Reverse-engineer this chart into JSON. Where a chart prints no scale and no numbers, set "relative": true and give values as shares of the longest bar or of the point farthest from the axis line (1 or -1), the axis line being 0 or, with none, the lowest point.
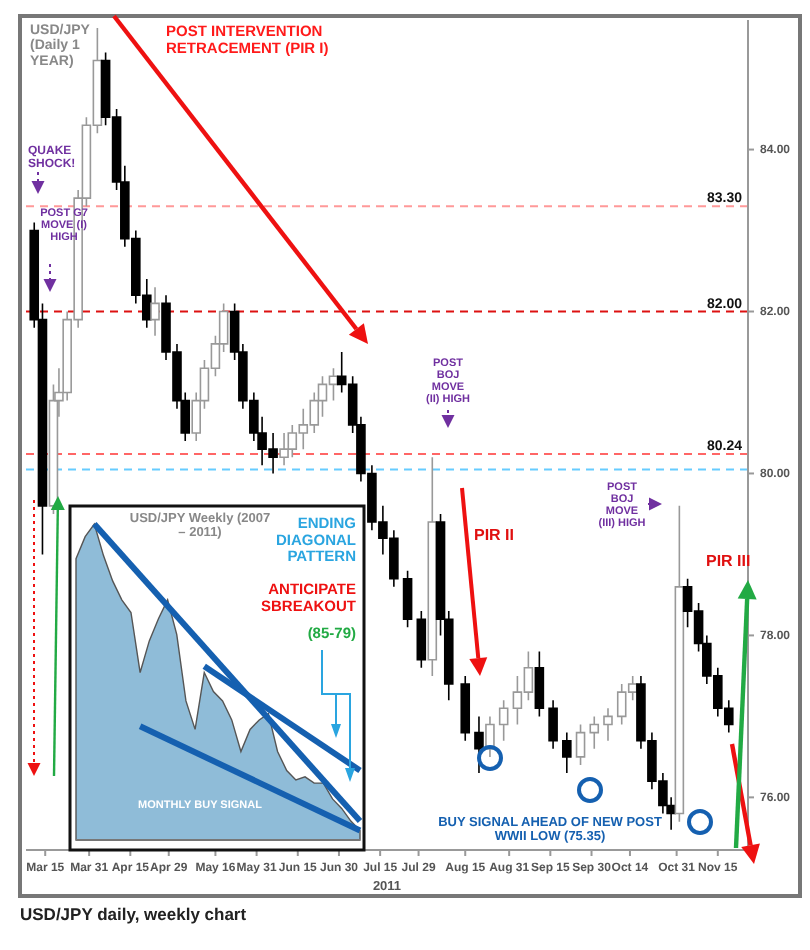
{
  "chart_data": [
    {
      "type": "candlestick",
      "title": "USD/JPY (Daily 1 YEAR)",
      "xlabel": "2011",
      "x": [
        "2011-03-11",
        "2011-03-14",
        "2011-03-18",
        "2011-03-20",
        "2011-03-23",
        "2011-03-27",
        "2011-03-30",
        "2011-04-03",
        "2011-04-06",
        "2011-04-10",
        "2011-04-13",
        "2011-04-17",
        "2011-04-21",
        "2011-04-24",
        "2011-04-28",
        "2011-05-02",
        "2011-05-05",
        "2011-05-09",
        "2011-05-12",
        "2011-05-16",
        "2011-05-19",
        "2011-05-23",
        "2011-05-26",
        "2011-05-30",
        "2011-06-02",
        "2011-06-06",
        "2011-06-10",
        "2011-06-13",
        "2011-06-17",
        "2011-06-21",
        "2011-06-24",
        "2011-06-28",
        "2011-07-01",
        "2011-07-05",
        "2011-07-08",
        "2011-07-12",
        "2011-07-16",
        "2011-07-20",
        "2011-07-25",
        "2011-07-30",
        "2011-08-03",
        "2011-08-06",
        "2011-08-09",
        "2011-08-15",
        "2011-08-20",
        "2011-08-24",
        "2011-08-29",
        "2011-09-03",
        "2011-09-07",
        "2011-09-11",
        "2011-09-16",
        "2011-09-21",
        "2011-09-26",
        "2011-10-01",
        "2011-10-06",
        "2011-10-11",
        "2011-10-15",
        "2011-10-18",
        "2011-10-22",
        "2011-10-26",
        "2011-10-29",
        "2011-11-01",
        "2011-11-04",
        "2011-11-08",
        "2011-11-11",
        "2011-11-15",
        "2011-11-19"
      ],
      "ohlc": [
        [
          83.0,
          83.1,
          81.8,
          81.9
        ],
        [
          81.9,
          82.1,
          79.0,
          79.6
        ],
        [
          79.6,
          81.1,
          79.5,
          80.9
        ],
        [
          80.9,
          81.3,
          80.7,
          81.0
        ],
        [
          81.0,
          82.0,
          80.9,
          81.9
        ],
        [
          81.9,
          83.5,
          81.8,
          83.4
        ],
        [
          83.4,
          84.4,
          83.3,
          84.3
        ],
        [
          84.3,
          85.5,
          84.2,
          85.1
        ],
        [
          85.1,
          85.2,
          84.3,
          84.4
        ],
        [
          84.4,
          84.5,
          83.5,
          83.6
        ],
        [
          83.6,
          83.8,
          82.8,
          82.9
        ],
        [
          82.9,
          83.0,
          82.1,
          82.2
        ],
        [
          82.2,
          82.4,
          81.8,
          81.9
        ],
        [
          81.9,
          82.3,
          81.7,
          82.1
        ],
        [
          82.1,
          82.2,
          81.4,
          81.5
        ],
        [
          81.5,
          81.6,
          80.8,
          80.9
        ],
        [
          80.9,
          81.0,
          80.4,
          80.5
        ],
        [
          80.5,
          81.0,
          80.4,
          80.9
        ],
        [
          80.9,
          81.4,
          80.8,
          81.3
        ],
        [
          81.3,
          81.7,
          81.2,
          81.6
        ],
        [
          81.6,
          82.1,
          81.5,
          82.0
        ],
        [
          82.0,
          82.1,
          81.4,
          81.5
        ],
        [
          81.5,
          81.6,
          80.8,
          80.9
        ],
        [
          80.9,
          81.0,
          80.4,
          80.5
        ],
        [
          80.5,
          80.7,
          80.1,
          80.3
        ],
        [
          80.3,
          80.5,
          80.0,
          80.2
        ],
        [
          80.2,
          80.5,
          80.1,
          80.3
        ],
        [
          80.3,
          80.6,
          80.2,
          80.5
        ],
        [
          80.5,
          80.8,
          80.3,
          80.6
        ],
        [
          80.6,
          81.0,
          80.5,
          80.9
        ],
        [
          80.9,
          81.2,
          80.7,
          81.1
        ],
        [
          81.1,
          81.3,
          80.9,
          81.2
        ],
        [
          81.2,
          81.5,
          81.0,
          81.1
        ],
        [
          81.1,
          81.2,
          80.5,
          80.6
        ],
        [
          80.6,
          80.7,
          79.9,
          80.0
        ],
        [
          80.0,
          80.1,
          79.3,
          79.4
        ],
        [
          79.4,
          79.6,
          79.0,
          79.2
        ],
        [
          79.2,
          79.3,
          78.6,
          78.7
        ],
        [
          78.7,
          78.8,
          78.1,
          78.2
        ],
        [
          78.2,
          78.3,
          77.6,
          77.7
        ],
        [
          77.7,
          80.2,
          77.5,
          79.4
        ],
        [
          79.4,
          79.5,
          78.0,
          78.2
        ],
        [
          78.2,
          78.3,
          77.2,
          77.4
        ],
        [
          77.4,
          77.5,
          76.7,
          76.8
        ],
        [
          76.8,
          77.0,
          76.3,
          76.6
        ],
        [
          76.6,
          77.0,
          76.5,
          76.9
        ],
        [
          76.9,
          77.2,
          76.7,
          77.1
        ],
        [
          77.1,
          77.5,
          76.9,
          77.3
        ],
        [
          77.3,
          77.8,
          77.2,
          77.6
        ],
        [
          77.6,
          77.8,
          77.0,
          77.1
        ],
        [
          77.1,
          77.2,
          76.6,
          76.7
        ],
        [
          76.7,
          76.8,
          76.3,
          76.5
        ],
        [
          76.5,
          76.9,
          76.4,
          76.8
        ],
        [
          76.8,
          77.0,
          76.6,
          76.9
        ],
        [
          76.9,
          77.1,
          76.7,
          77.0
        ],
        [
          77.0,
          77.4,
          76.9,
          77.3
        ],
        [
          77.3,
          77.5,
          77.2,
          77.4
        ],
        [
          77.4,
          77.5,
          76.6,
          76.7
        ],
        [
          76.7,
          76.8,
          76.1,
          76.2
        ],
        [
          76.2,
          76.3,
          75.8,
          75.9
        ],
        [
          75.9,
          76.0,
          75.6,
          75.8
        ],
        [
          75.8,
          79.6,
          75.7,
          78.6
        ],
        [
          78.6,
          78.7,
          78.1,
          78.3
        ],
        [
          78.3,
          78.4,
          77.8,
          77.9
        ],
        [
          77.9,
          78.0,
          77.4,
          77.5
        ],
        [
          77.5,
          77.6,
          77.0,
          77.1
        ],
        [
          77.1,
          77.2,
          76.8,
          76.9
        ]
      ],
      "xlim": [
        "2011-03-08",
        "2011-11-26"
      ],
      "xticks": [
        {
          "value": "2011-03-15",
          "label": "Mar 15"
        },
        {
          "value": "2011-03-31",
          "label": "Mar 31"
        },
        {
          "value": "2011-04-15",
          "label": "Apr 15"
        },
        {
          "value": "2011-04-29",
          "label": "Apr 29"
        },
        {
          "value": "2011-05-16",
          "label": "May 16"
        },
        {
          "value": "2011-05-31",
          "label": "May 31"
        },
        {
          "value": "2011-06-15",
          "label": "Jun 15"
        },
        {
          "value": "2011-06-30",
          "label": "Jun 30"
        },
        {
          "value": "2011-07-15",
          "label": "Jul 15"
        },
        {
          "value": "2011-07-29",
          "label": "Jul 29"
        },
        {
          "value": "2011-08-15",
          "label": "Aug 15"
        },
        {
          "value": "2011-08-31",
          "label": "Aug 31"
        },
        {
          "value": "2011-09-15",
          "label": "Sep 15"
        },
        {
          "value": "2011-09-30",
          "label": "Sep 30"
        },
        {
          "value": "2011-10-14",
          "label": "Oct 14"
        },
        {
          "value": "2011-10-31",
          "label": "Oct 31"
        },
        {
          "value": "2011-11-15",
          "label": "Nov 15"
        }
      ],
      "ylim": [
        75.35,
        85.6
      ],
      "yticks": [
        {
          "value": 76,
          "label": "76.00"
        },
        {
          "value": 78,
          "label": "78.00"
        },
        {
          "value": 80,
          "label": "80.00"
        },
        {
          "value": 82,
          "label": "82.00"
        },
        {
          "value": 84,
          "label": "84.00"
        }
      ],
      "ref_lines": [
        {
          "axis": "y",
          "value": 83.3,
          "label": "83.30",
          "color": "#ff9999",
          "line_style": "dashed"
        },
        {
          "axis": "y",
          "value": 82.0,
          "label": "82.00",
          "color": "#dd1111",
          "line_style": "dashed"
        },
        {
          "axis": "y",
          "value": 80.24,
          "label": "80.24",
          "color": "#ff6666",
          "line_style": "dashed"
        },
        {
          "axis": "y",
          "value": 80.05,
          "color": "#66ccff",
          "line_style": "dashed"
        }
      ],
      "annotations": [
        "POST INTERVENTION RETRACEMENT (PIR I)",
        "QUAKE SHOCK!",
        "POST G7 MOVE (I) HIGH",
        "POST BOJ MOVE (II) HIGH",
        "POST BOJ MOVE (III) HIGH",
        "PIR II",
        "PIR III",
        "BUY SIGNAL AHEAD OF NEW POST WWII LOW (75.35)",
        "USD/JPY daily, weekly chart"
      ]
    },
    {
      "type": "area",
      "relative": true,
      "title": "USD/JPY Weekly (2007 – 2011)",
      "categories": [
        null,
        null,
        null,
        null,
        null,
        null,
        null,
        null,
        null,
        null,
        null,
        null,
        null,
        null,
        null,
        null,
        null,
        null,
        null,
        null,
        null,
        null,
        null,
        null,
        null,
        null,
        null,
        null,
        null,
        null,
        null,
        null
      ],
      "series": [
        {
          "color": "#8fbcd8",
          "values": [
            0.89,
            0.96,
            1,
            0.9,
            0.82,
            0.76,
            0.72,
            0.53,
            0.63,
            0.7,
            0.76,
            0.65,
            0.44,
            0.35,
            0.53,
            0.47,
            0.44,
            0.38,
            0.28,
            0.35,
            0.38,
            0.4,
            0.28,
            0.22,
            0.19,
            0.2,
            0.18,
            0.18,
            0.13,
            0.1,
            0.06,
            0.03
          ]
        },
        {
          "type": "line",
          "color": "#1560b0",
          "values": [
            null,
            null,
            1,
            null,
            null,
            null,
            null,
            null,
            null,
            null,
            null,
            null,
            null,
            null,
            null,
            null,
            null,
            null,
            null,
            null,
            null,
            null,
            null,
            null,
            null,
            null,
            null,
            null,
            null,
            null,
            null,
            0.06
          ]
        },
        {
          "type": "line",
          "color": "#1560b0",
          "values": [
            null,
            null,
            null,
            null,
            null,
            null,
            null,
            null,
            null,
            null,
            null,
            null,
            null,
            null,
            0.55,
            null,
            null,
            null,
            null,
            null,
            null,
            null,
            null,
            null,
            null,
            null,
            null,
            null,
            null,
            null,
            null,
            0.22
          ]
        },
        {
          "type": "line",
          "color": "#1560b0",
          "values": [
            null,
            null,
            null,
            null,
            null,
            null,
            null,
            0.36,
            null,
            null,
            null,
            null,
            null,
            null,
            null,
            null,
            null,
            null,
            null,
            null,
            null,
            null,
            null,
            null,
            null,
            null,
            null,
            null,
            null,
            null,
            null,
            0.03
          ]
        }
      ],
      "annotations": [
        "ENDING DIAGONAL PATTERN",
        "ANTICIPATE SBREAKOUT",
        "(85-79)",
        "MONTHLY BUY SIGNAL"
      ]
    }
  ]
}
